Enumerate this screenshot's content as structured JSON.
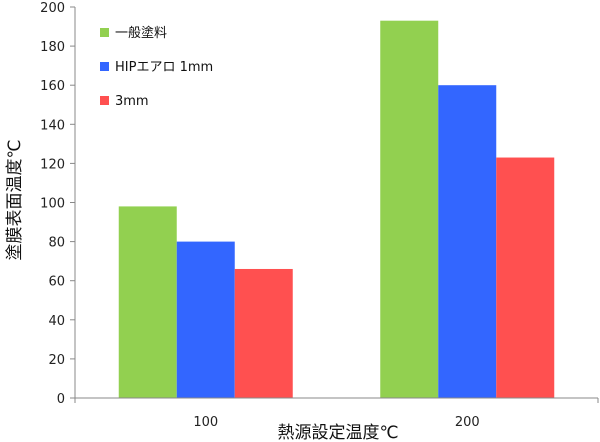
{
  "chart_data": {
    "type": "bar",
    "title": "",
    "xlabel": "熱源設定温度℃",
    "ylabel": "塗膜表面温度℃",
    "categories": [
      "100",
      "200"
    ],
    "series": [
      {
        "name": "一般塗料",
        "color": "#92d050",
        "values": [
          98,
          193
        ]
      },
      {
        "name": "HIPエアロ 1mm",
        "color": "#3366ff",
        "values": [
          80,
          160
        ]
      },
      {
        "name": "3mm",
        "color": "#ff5050",
        "values": [
          66,
          123
        ]
      }
    ],
    "ylim": [
      0,
      200
    ],
    "yticks": [
      0,
      20,
      40,
      60,
      80,
      100,
      120,
      140,
      160,
      180,
      200
    ],
    "grid": false,
    "legend_position": "top-left"
  }
}
